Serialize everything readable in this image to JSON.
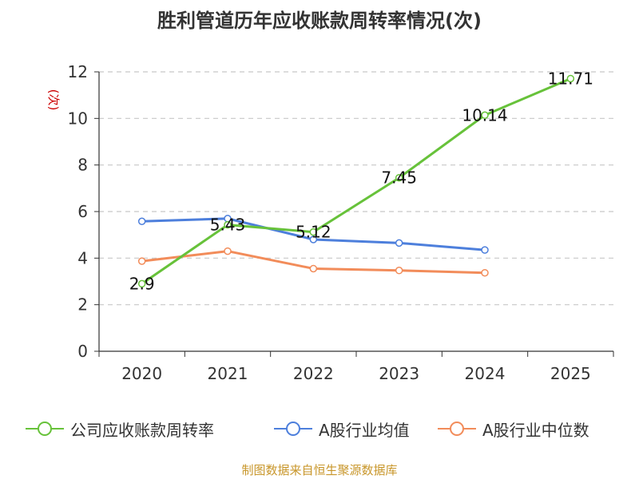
{
  "chart_data": {
    "type": "line",
    "title": "胜利管道历年应收账款周转率情况(次)",
    "ylabel": "(次)",
    "xlabel": "",
    "categories": [
      "2020",
      "2021",
      "2022",
      "2023",
      "2024",
      "2025"
    ],
    "ylim": [
      0,
      12
    ],
    "yticks": [
      0,
      2,
      4,
      6,
      8,
      10,
      12
    ],
    "grid": true,
    "legend_position": "bottom",
    "series": [
      {
        "name": "公司应收账款周转率",
        "color": "#67c23a",
        "values": [
          2.9,
          5.43,
          5.12,
          7.45,
          10.14,
          11.71
        ],
        "labels": [
          "2.9",
          "5.43",
          "5.12",
          "7.45",
          "10.14",
          "11.71"
        ]
      },
      {
        "name": "A股行业均值",
        "color": "#4d7fdc",
        "values": [
          5.58,
          5.7,
          4.8,
          4.65,
          4.35,
          null
        ]
      },
      {
        "name": "A股行业中位数",
        "color": "#f28c5a",
        "values": [
          3.87,
          4.3,
          3.55,
          3.47,
          3.37,
          null
        ]
      }
    ]
  },
  "colors": {
    "ylabel": "#cc0000",
    "source": "#c8962a",
    "grid": "#c8c8c8",
    "axis": "#333333"
  },
  "source_note": "制图数据来自恒生聚源数据库"
}
